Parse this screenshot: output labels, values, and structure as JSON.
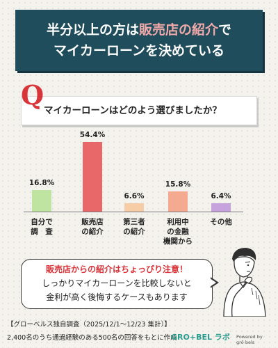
{
  "header": {
    "line1_a": "半分以上の方は",
    "line1_b": "販売店の紹介",
    "line1_c": "で",
    "line2": "マイカーローンを決めている"
  },
  "question": {
    "mark": "Q",
    "text": "マイカーローンはどのよう選びましたか？"
  },
  "chart_data": {
    "type": "bar",
    "categories": [
      "自分で\n調　査",
      "販売店\nの紹介",
      "第三者\nの紹介",
      "利用中\nの金融\n機関から",
      "その他"
    ],
    "values": [
      16.8,
      54.4,
      6.6,
      15.8,
      6.4
    ],
    "value_labels": [
      "16.8%",
      "54.4%",
      "6.6%",
      "15.8%",
      "6.4%"
    ],
    "colors": [
      "#bfe3a1",
      "#e8686a",
      "#f7cda8",
      "#f3aa90",
      "#c7a3dd"
    ],
    "ylim": [
      0,
      54.4
    ],
    "grid": false
  },
  "callout": {
    "line1": "販売店からの紹介はちょっぴり注意！",
    "line2": "しっかりマイカーローンを比較しないと",
    "line3": "金利が高く後悔するケースもあります"
  },
  "footer": {
    "line1": "【グローベルス独自調査（2025/12/1～12/23 集計）】",
    "line2": "2,400名のうち通過経験のある500名の回答をもとに作成",
    "logo": "GRO+BEL ラボ",
    "logo_sub": "Powered by grō·bels"
  },
  "illustration": {
    "icon": "thinking-man-icon"
  }
}
